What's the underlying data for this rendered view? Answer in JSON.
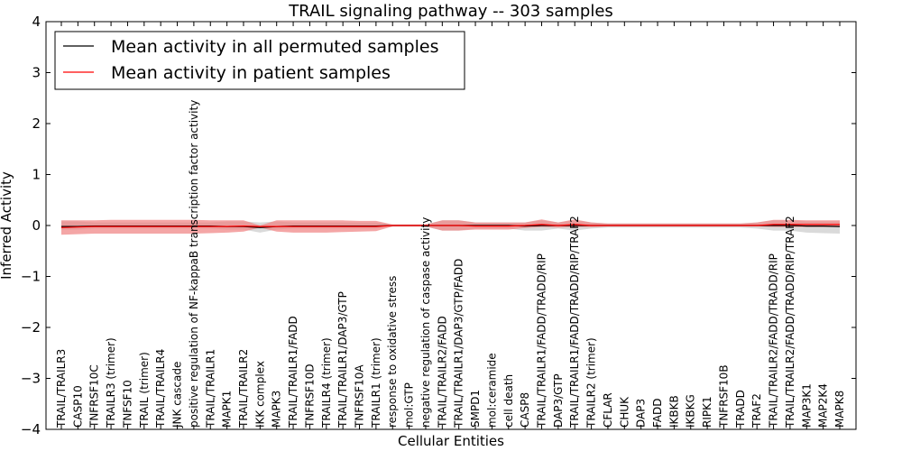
{
  "chart_data": {
    "type": "line",
    "title": "TRAIL signaling pathway -- 303 samples",
    "xlabel": "Cellular Entities",
    "ylabel": "Inferred Activity",
    "ylim": [
      -4,
      4
    ],
    "yticks": [
      4,
      3,
      2,
      1,
      0,
      -1,
      -2,
      -3,
      -4
    ],
    "ytick_labels": [
      "4",
      "3",
      "2",
      "1",
      "0",
      "−1",
      "−2",
      "−3",
      "−4"
    ],
    "grid": false,
    "legend_position": "top-left",
    "categories": [
      "TRAIL/TRAILR3",
      "CASP10",
      "TNFRSF10C",
      "TRAILR3 (trimer)",
      "TNFSF10",
      "TRAIL (trimer)",
      "TRAIL/TRAILR4",
      "JNK cascade",
      "positive regulation of NF-kappaB transcription factor activity",
      "TRAIL/TRAILR1",
      "MAPK1",
      "TRAIL/TRAILR2",
      "IKK complex",
      "MAPK3",
      "TRAIL/TRAILR1/FADD",
      "TNFRSF10D",
      "TRAILR4 (trimer)",
      "TRAIL/TRAILR1/DAP3/GTP",
      "TNFRSF10A",
      "TRAILR1 (trimer)",
      "response to oxidative stress",
      "mol:GTP",
      "negative regulation of caspase activity",
      "TRAIL/TRAILR2/FADD",
      "TRAIL/TRAILR1/DAP3/GTP/FADD",
      "SMPD1",
      "mol:ceramide",
      "cell death",
      "CASP8",
      "TRAIL/TRAILR1/FADD/TRADD/RIP",
      "DAP3/GTP",
      "TRAIL/TRAILR1/FADD/TRADD/RIP/TRAF2",
      "TRAILR2 (trimer)",
      "CFLAR",
      "CHUK",
      "DAP3",
      "FADD",
      "IKBKB",
      "IKBKG",
      "RIPK1",
      "TNFRSF10B",
      "TRADD",
      "TRAF2",
      "TRAIL/TRAILR2/FADD/TRADD/RIP",
      "TRAIL/TRAILR2/FADD/TRADD/RIP/TRAF2",
      "MAP3K1",
      "MAP2K4",
      "MAPK8"
    ],
    "series": [
      {
        "name": "Mean activity in all permuted samples",
        "color": "#000000",
        "values": [
          -0.02,
          -0.02,
          -0.01,
          -0.01,
          -0.01,
          -0.01,
          -0.01,
          -0.01,
          -0.01,
          -0.01,
          -0.02,
          -0.02,
          -0.04,
          -0.02,
          -0.01,
          -0.01,
          -0.01,
          -0.01,
          -0.01,
          -0.01,
          0.0,
          0.0,
          0.0,
          0.0,
          0.0,
          0.0,
          0.0,
          0.0,
          -0.01,
          0.0,
          0.0,
          0.0,
          0.0,
          0.0,
          0.0,
          0.0,
          0.0,
          0.0,
          0.0,
          0.0,
          0.0,
          0.0,
          0.0,
          0.0,
          0.0,
          -0.01,
          -0.01,
          -0.02
        ],
        "band": {
          "color": "#bbbbbb",
          "lower": [
            -0.08,
            -0.08,
            -0.06,
            -0.06,
            -0.06,
            -0.06,
            -0.06,
            -0.06,
            -0.06,
            -0.06,
            -0.08,
            -0.08,
            -0.14,
            -0.08,
            -0.06,
            -0.06,
            -0.06,
            -0.06,
            -0.06,
            -0.06,
            -0.02,
            -0.02,
            -0.02,
            -0.1,
            -0.1,
            -0.06,
            -0.06,
            -0.06,
            -0.1,
            -0.1,
            -0.06,
            -0.1,
            -0.06,
            -0.04,
            -0.04,
            -0.04,
            -0.04,
            -0.04,
            -0.04,
            -0.04,
            -0.04,
            -0.04,
            -0.06,
            -0.1,
            -0.1,
            -0.14,
            -0.15,
            -0.16
          ],
          "upper": [
            0.08,
            0.08,
            0.06,
            0.06,
            0.06,
            0.06,
            0.06,
            0.06,
            0.06,
            0.06,
            0.08,
            0.08,
            0.06,
            0.08,
            0.06,
            0.06,
            0.06,
            0.06,
            0.06,
            0.06,
            0.02,
            0.02,
            0.02,
            0.1,
            0.1,
            0.06,
            0.06,
            0.06,
            0.06,
            0.1,
            0.06,
            0.1,
            0.06,
            0.04,
            0.04,
            0.04,
            0.04,
            0.04,
            0.04,
            0.04,
            0.04,
            0.04,
            0.06,
            0.1,
            0.1,
            0.08,
            0.08,
            0.08
          ]
        }
      },
      {
        "name": "Mean activity in patient samples",
        "color": "#ff0000",
        "values": [
          -0.04,
          -0.03,
          -0.02,
          -0.02,
          -0.02,
          -0.02,
          -0.02,
          -0.02,
          -0.02,
          -0.02,
          -0.02,
          -0.01,
          -0.02,
          -0.02,
          -0.02,
          -0.02,
          -0.02,
          -0.02,
          -0.02,
          -0.02,
          0.0,
          0.0,
          0.0,
          0.0,
          0.0,
          -0.01,
          -0.01,
          -0.01,
          0.0,
          0.02,
          0.0,
          0.02,
          0.0,
          0.0,
          0.0,
          0.0,
          0.0,
          0.0,
          0.0,
          0.0,
          0.0,
          0.0,
          0.0,
          0.02,
          0.02,
          0.02,
          0.02,
          0.02
        ],
        "band": {
          "color": "#f08080",
          "lower": [
            -0.18,
            -0.17,
            -0.16,
            -0.16,
            -0.16,
            -0.16,
            -0.16,
            -0.16,
            -0.16,
            -0.15,
            -0.14,
            -0.12,
            -0.04,
            -0.12,
            -0.14,
            -0.14,
            -0.14,
            -0.13,
            -0.12,
            -0.11,
            -0.02,
            -0.02,
            -0.02,
            -0.1,
            -0.1,
            -0.08,
            -0.08,
            -0.08,
            -0.05,
            -0.03,
            -0.04,
            -0.03,
            -0.03,
            -0.02,
            -0.02,
            -0.02,
            -0.02,
            -0.02,
            -0.02,
            -0.02,
            -0.02,
            -0.02,
            -0.02,
            -0.03,
            -0.03,
            -0.03,
            -0.03,
            -0.03
          ],
          "upper": [
            0.1,
            0.1,
            0.1,
            0.11,
            0.11,
            0.11,
            0.11,
            0.11,
            0.11,
            0.1,
            0.1,
            0.1,
            0.0,
            0.1,
            0.1,
            0.1,
            0.1,
            0.1,
            0.09,
            0.09,
            0.02,
            0.02,
            0.02,
            0.1,
            0.1,
            0.06,
            0.06,
            0.06,
            0.06,
            0.12,
            0.06,
            0.12,
            0.06,
            0.04,
            0.04,
            0.04,
            0.04,
            0.04,
            0.04,
            0.04,
            0.04,
            0.04,
            0.06,
            0.11,
            0.11,
            0.1,
            0.1,
            0.1
          ]
        }
      }
    ]
  }
}
